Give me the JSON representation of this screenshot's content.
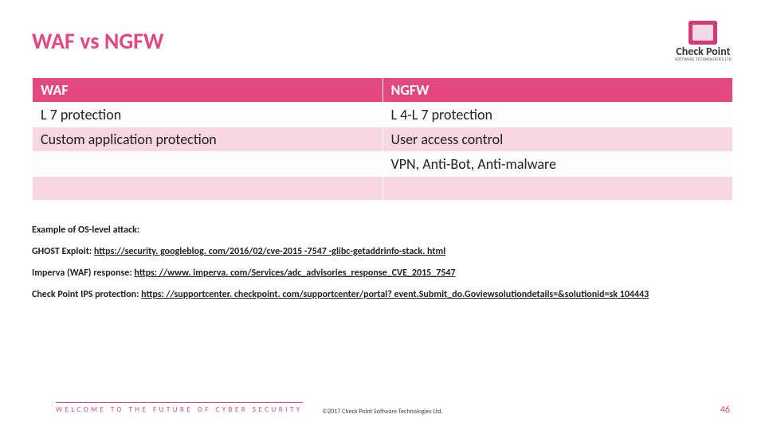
{
  "title": "WAF vs NGFW",
  "logo": {
    "name": "Check Point",
    "sub": "SOFTWARE TECHNOLOGIES LTD"
  },
  "table": {
    "headers": [
      "WAF",
      "NGFW"
    ],
    "rows": [
      [
        "L 7 protection",
        "L 4-L 7 protection"
      ],
      [
        "Custom application protection",
        "User access control"
      ],
      [
        "",
        "VPN, Anti-Bot, Anti-malware"
      ],
      [
        "",
        ""
      ]
    ]
  },
  "refs": {
    "intro": "Example of OS-level attack:",
    "lines": [
      {
        "label": "GHOST Exploit: ",
        "url": "https://security. googleblog. com/2016/02/cve-2015 -7547 -glibc-getaddrinfo-stack. html"
      },
      {
        "label": "Imperva (WAF) response: ",
        "url": "https: //www. imperva. com/Services/adc_advisories_response_CVE_2015_7547"
      },
      {
        "label": "Check Point IPS protection: ",
        "url": "https: //supportcenter. checkpoint. com/supportcenter/portal? event.Submit_do.Goviewsolutiondetails=&solutionid=sk 104443"
      }
    ]
  },
  "footer": {
    "tagline": "WELCOME TO THE FUTURE OF CYBER SECURITY",
    "copyright": "©2017 Check Point Software Technologies Ltd.",
    "page": "46"
  }
}
